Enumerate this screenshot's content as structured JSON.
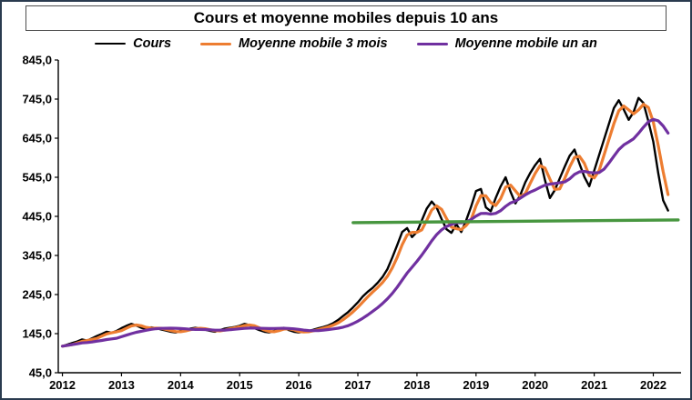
{
  "chart_data": {
    "type": "line",
    "title": "Cours et moyenne mobiles depuis 10 ans",
    "legend": [
      {
        "label": "Cours"
      },
      {
        "label": "Moyenne mobile 3 mois"
      },
      {
        "label": "Moyenne mobile un an"
      }
    ],
    "x_unit": "year",
    "sampling": "monthly",
    "x_ticks": [
      2012,
      2013,
      2014,
      2015,
      2016,
      2017,
      2018,
      2019,
      2020,
      2021,
      2022
    ],
    "x_tick_labels": [
      "2012",
      "2013",
      "2014",
      "2015",
      "2016",
      "2017",
      "2018",
      "2019",
      "2020",
      "2021",
      "2022"
    ],
    "y_ticks": [
      45,
      145,
      245,
      345,
      445,
      545,
      645,
      745,
      845
    ],
    "y_tick_labels": [
      "45,0",
      "145,0",
      "245,0",
      "345,0",
      "445,0",
      "545,0",
      "645,0",
      "745,0",
      "845,0"
    ],
    "xlim": [
      2011.93,
      2022.47
    ],
    "ylim": [
      45,
      845
    ],
    "series": [
      {
        "name": "Cours",
        "slug": "cours-line",
        "color": "#000000",
        "stroke_width": 2.4,
        "kind": "raw",
        "x_start": 2012,
        "y": [
          113,
          117,
          121,
          125,
          130,
          127,
          133,
          139,
          144,
          150,
          147,
          152,
          159,
          165,
          170,
          166,
          160,
          157,
          161,
          159,
          156,
          153,
          150,
          148,
          152,
          155,
          158,
          160,
          158,
          155,
          152,
          150,
          154,
          158,
          160,
          162,
          165,
          170,
          167,
          159,
          154,
          150,
          148,
          152,
          158,
          160,
          154,
          150,
          148,
          150,
          152,
          155,
          159,
          162,
          166,
          172,
          180,
          190,
          200,
          212,
          225,
          240,
          252,
          262,
          275,
          290,
          310,
          340,
          372,
          405,
          415,
          392,
          405,
          435,
          465,
          483,
          468,
          438,
          412,
          403,
          425,
          405,
          435,
          470,
          510,
          515,
          468,
          458,
          492,
          522,
          545,
          508,
          478,
          500,
          532,
          556,
          576,
          592,
          538,
          492,
          512,
          542,
          572,
          600,
          616,
          580,
          546,
          522,
          562,
          602,
          642,
          682,
          722,
          742,
          718,
          692,
          712,
          748,
          735,
          688,
          636,
          556,
          486,
          460
        ]
      },
      {
        "name": "Moyenne mobile 3 mois",
        "slug": "moving-average-3-months-line",
        "color": "#ED7D31",
        "stroke_width": 3.2,
        "kind": "moving_average",
        "window": 3,
        "source": "Cours"
      },
      {
        "name": "Moyenne mobile un an",
        "slug": "moving-average-1-year-line",
        "color": "#7030A0",
        "stroke_width": 3.2,
        "kind": "moving_average",
        "window": 12,
        "source": "Cours"
      },
      {
        "name": "Niveau de reference",
        "slug": "reference-level-line",
        "color": "#47963F",
        "stroke_width": 3.4,
        "kind": "segment",
        "x": [
          2016.92,
          2022.42
        ],
        "y": [
          429,
          436
        ]
      }
    ]
  }
}
